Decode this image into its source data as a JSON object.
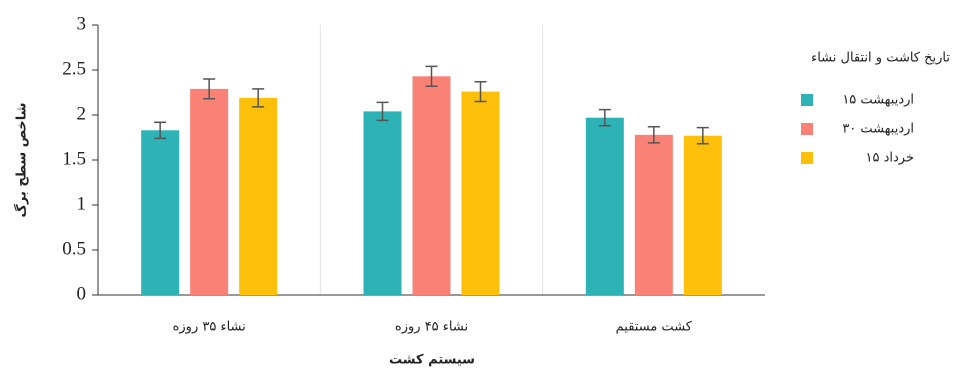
{
  "chart_data": {
    "type": "bar",
    "categories": [
      "نشاء ۳۵ روزه",
      "نشاء ۴۵ روزه",
      "کشت مستقیم"
    ],
    "series": [
      {
        "name": "۱۵ اردیبهشت",
        "color": "#2db2b6",
        "values": [
          1.83,
          2.04,
          1.97
        ],
        "errors": [
          0.09,
          0.1,
          0.09
        ]
      },
      {
        "name": "۳۰ اردیبهشت",
        "color": "#fa8176",
        "values": [
          2.29,
          2.43,
          1.78
        ],
        "errors": [
          0.11,
          0.11,
          0.09
        ]
      },
      {
        "name": "۱۵ خرداد",
        "color": "#fcbf0a",
        "values": [
          2.19,
          2.26,
          1.77
        ],
        "errors": [
          0.1,
          0.11,
          0.09
        ]
      }
    ],
    "ylim": [
      0,
      3
    ],
    "yticks": [
      0,
      0.5,
      1,
      1.5,
      2,
      2.5,
      3
    ],
    "ylabel": "شاخص سطح برگ",
    "xlabel": "سیستم کشت",
    "legend_title": "تاریخ کاشت و انتقال نشاء",
    "legend": "right"
  }
}
